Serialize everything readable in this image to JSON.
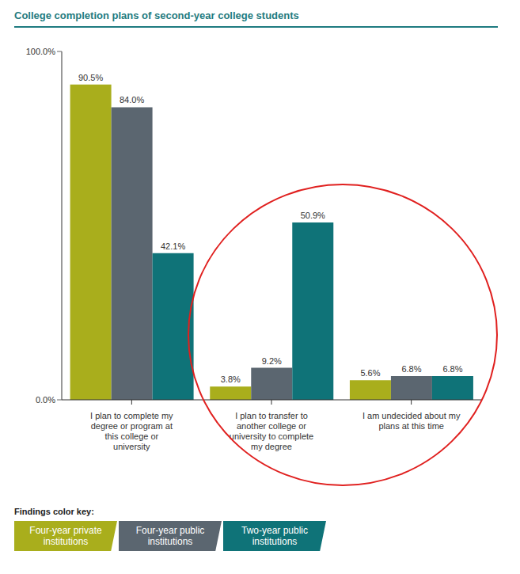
{
  "chart_data": {
    "type": "bar",
    "title": "College completion plans of second-year college students",
    "categories": [
      "I plan to complete my degree or program at this college or university",
      "I plan to transfer to another college or university to complete my degree",
      "I am undecided about my plans at this time"
    ],
    "series": [
      {
        "name": "Four-year private institutions",
        "color": "#a9ae1c",
        "values": [
          90.5,
          3.8,
          5.6
        ],
        "value_labels": [
          "90.5%",
          "3.8%",
          "5.6%"
        ]
      },
      {
        "name": "Four-year public institutions",
        "color": "#5b6670",
        "values": [
          84.0,
          9.2,
          6.8
        ],
        "value_labels": [
          "84.0%",
          "9.2%",
          "6.8%"
        ]
      },
      {
        "name": "Two-year public institutions",
        "color": "#0f7378",
        "values": [
          42.1,
          50.9,
          6.8
        ],
        "value_labels": [
          "42.1%",
          "50.9%",
          "6.8%"
        ]
      }
    ],
    "ylim": [
      0,
      100
    ],
    "yticks": [
      {
        "value": 0,
        "label": "0.0%"
      },
      {
        "value": 100,
        "label": "100.0%"
      }
    ],
    "grid": false,
    "data_labels": true,
    "legend": "bottom-left",
    "legend_title": "Findings color key:"
  }
}
